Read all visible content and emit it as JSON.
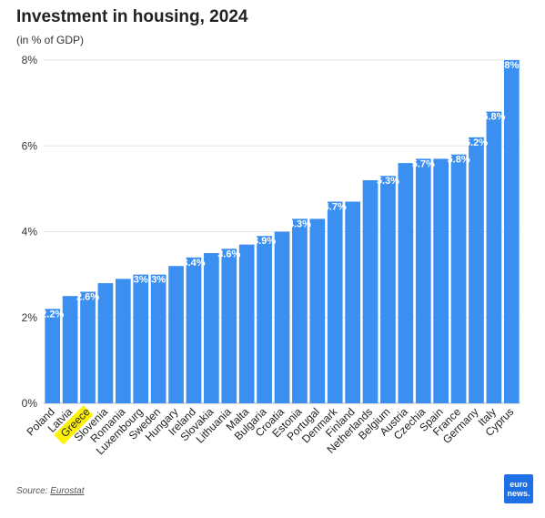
{
  "header": {
    "title": "Investment in housing, 2024",
    "subtitle": "(in % of GDP)"
  },
  "footer": {
    "source_prefix": "Source: ",
    "source_name": "Eurostat",
    "logo_line1": "euro",
    "logo_line2": "news."
  },
  "colors": {
    "bar": "#3a8ff0",
    "highlight": "#fff200",
    "grid": "#e6e6e6"
  },
  "chart_data": {
    "type": "bar",
    "title": "Investment in housing, 2024",
    "subtitle": "(in % of GDP)",
    "xlabel": "",
    "ylabel": "",
    "ylim": [
      0,
      8
    ],
    "yticks": [
      0,
      2,
      4,
      6,
      8
    ],
    "ytick_labels": [
      "0%",
      "2%",
      "4%",
      "6%",
      "8%"
    ],
    "grid": true,
    "highlight_category": "Greece",
    "categories": [
      "Poland",
      "Latvia",
      "Greece",
      "Slovenia",
      "Romania",
      "Luxembourg",
      "Sweden",
      "Hungary",
      "Ireland",
      "Slovakia",
      "Lithuania",
      "Malta",
      "Bulgaria",
      "Croatia",
      "Estonia",
      "Portugal",
      "Denmark",
      "Finland",
      "Netherlands",
      "Belgium",
      "Austria",
      "Czechia",
      "Spain",
      "France",
      "Germany",
      "Italy",
      "Cyprus"
    ],
    "values": [
      2.2,
      2.5,
      2.6,
      2.8,
      2.9,
      3.0,
      3.0,
      3.2,
      3.4,
      3.5,
      3.6,
      3.7,
      3.9,
      4.0,
      4.3,
      4.3,
      4.7,
      4.7,
      5.2,
      5.3,
      5.6,
      5.7,
      5.7,
      5.8,
      6.2,
      6.8,
      8.0
    ],
    "data_labels": [
      "2.2%",
      "",
      "2.6%",
      "",
      "",
      "3%",
      "3%",
      "",
      "3.4%",
      "",
      "3.6%",
      "",
      "3.9%",
      "",
      "4.3%",
      "",
      "4.7%",
      "",
      "",
      "5.3%",
      "",
      "5.7%",
      "",
      "5.8%",
      "6.2%",
      "6.8%",
      "8%"
    ]
  }
}
